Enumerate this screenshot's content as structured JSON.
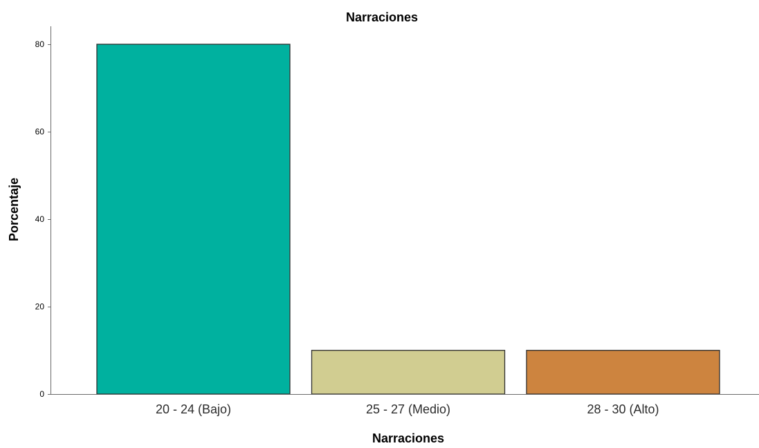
{
  "chart_data": {
    "type": "bar",
    "title": "Narraciones",
    "xlabel": "Narraciones",
    "ylabel": "Porcentaje",
    "categories": [
      "20 - 24 (Bajo)",
      "25 - 27 (Medio)",
      "28 - 30 (Alto)"
    ],
    "values": [
      80,
      10,
      10
    ],
    "colors": [
      "#00b19f",
      "#d1cd91",
      "#cd843f"
    ],
    "ylim": [
      0,
      84
    ],
    "yticks": [
      0,
      20,
      40,
      60,
      80
    ],
    "grid": false,
    "legend": "none"
  }
}
